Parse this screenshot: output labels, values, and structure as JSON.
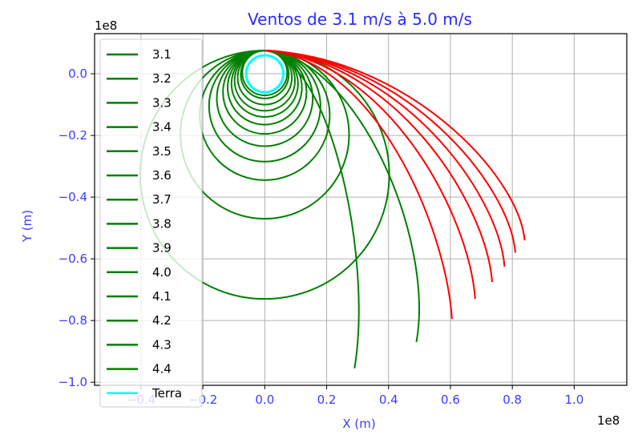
{
  "chart_data": {
    "type": "line",
    "title": "Ventos de 3.1 m/s à 5.0 m/s",
    "xlabel": "X (m)",
    "ylabel": "Y (m)",
    "x_offset_label": "1e8",
    "y_offset_label": "1e8",
    "xlim": [
      -0.55,
      1.17
    ],
    "ylim": [
      -1.01,
      0.13
    ],
    "x_ticks": [
      -0.4,
      -0.2,
      0.0,
      0.2,
      0.4,
      0.6,
      0.8,
      1.0
    ],
    "x_tick_labels": [
      "−0.4",
      "−0.2",
      "0.0",
      "0.2",
      "0.4",
      "0.6",
      "0.8",
      "1.0"
    ],
    "y_ticks": [
      0.0,
      -0.2,
      -0.4,
      -0.6,
      -0.8,
      -1.0
    ],
    "y_tick_labels": [
      "0.0",
      "−0.2",
      "−0.4",
      "−0.6",
      "−0.8",
      "−1.0"
    ],
    "grid": true,
    "legend": {
      "position": "upper-left",
      "entries": [
        {
          "label": "3.1",
          "color": "#008000"
        },
        {
          "label": "3.2",
          "color": "#008000"
        },
        {
          "label": "3.3",
          "color": "#008000"
        },
        {
          "label": "3.4",
          "color": "#008000"
        },
        {
          "label": "3.5",
          "color": "#008000"
        },
        {
          "label": "3.6",
          "color": "#008000"
        },
        {
          "label": "3.7",
          "color": "#008000"
        },
        {
          "label": "3.8",
          "color": "#008000"
        },
        {
          "label": "3.9",
          "color": "#008000"
        },
        {
          "label": "4.0",
          "color": "#008000"
        },
        {
          "label": "4.1",
          "color": "#008000"
        },
        {
          "label": "4.2",
          "color": "#008000"
        },
        {
          "label": "4.3",
          "color": "#008000"
        },
        {
          "label": "4.4",
          "color": "#008000"
        },
        {
          "label": "Terra",
          "color": "#00ffff"
        }
      ]
    },
    "earth": {
      "label": "Terra",
      "center": [
        0.0,
        0.0
      ],
      "radius": 0.06,
      "color": "#00ffff"
    },
    "series": [
      {
        "color": "#008000",
        "closed": true,
        "bottom": -0.07
      },
      {
        "color": "#008000",
        "closed": true,
        "bottom": -0.08
      },
      {
        "color": "#008000",
        "closed": true,
        "bottom": -0.1
      },
      {
        "color": "#008000",
        "closed": true,
        "bottom": -0.12
      },
      {
        "color": "#008000",
        "closed": true,
        "bottom": -0.14
      },
      {
        "color": "#008000",
        "closed": true,
        "bottom": -0.165
      },
      {
        "color": "#008000",
        "closed": true,
        "bottom": -0.195
      },
      {
        "color": "#008000",
        "closed": true,
        "bottom": -0.235
      },
      {
        "color": "#008000",
        "closed": true,
        "bottom": -0.285
      },
      {
        "color": "#008000",
        "closed": true,
        "bottom": -0.345
      },
      {
        "color": "#008000",
        "closed": true,
        "bottom": -0.47
      },
      {
        "color": "#008000",
        "closed": true,
        "bottom": -0.73
      },
      {
        "color": "#008000",
        "closed": false,
        "end": [
          0.29,
          -0.955
        ]
      },
      {
        "color": "#008000",
        "closed": false,
        "end": [
          0.49,
          -0.87
        ]
      },
      {
        "color": "#ff0000",
        "closed": false,
        "end": [
          0.605,
          -0.795
        ]
      },
      {
        "color": "#ff0000",
        "closed": false,
        "end": [
          0.68,
          -0.73
        ]
      },
      {
        "color": "#ff0000",
        "closed": false,
        "end": [
          0.735,
          -0.675
        ]
      },
      {
        "color": "#ff0000",
        "closed": false,
        "end": [
          0.775,
          -0.625
        ]
      },
      {
        "color": "#ff0000",
        "closed": false,
        "end": [
          0.81,
          -0.58
        ]
      },
      {
        "color": "#ff0000",
        "closed": false,
        "end": [
          0.84,
          -0.54
        ]
      }
    ]
  }
}
